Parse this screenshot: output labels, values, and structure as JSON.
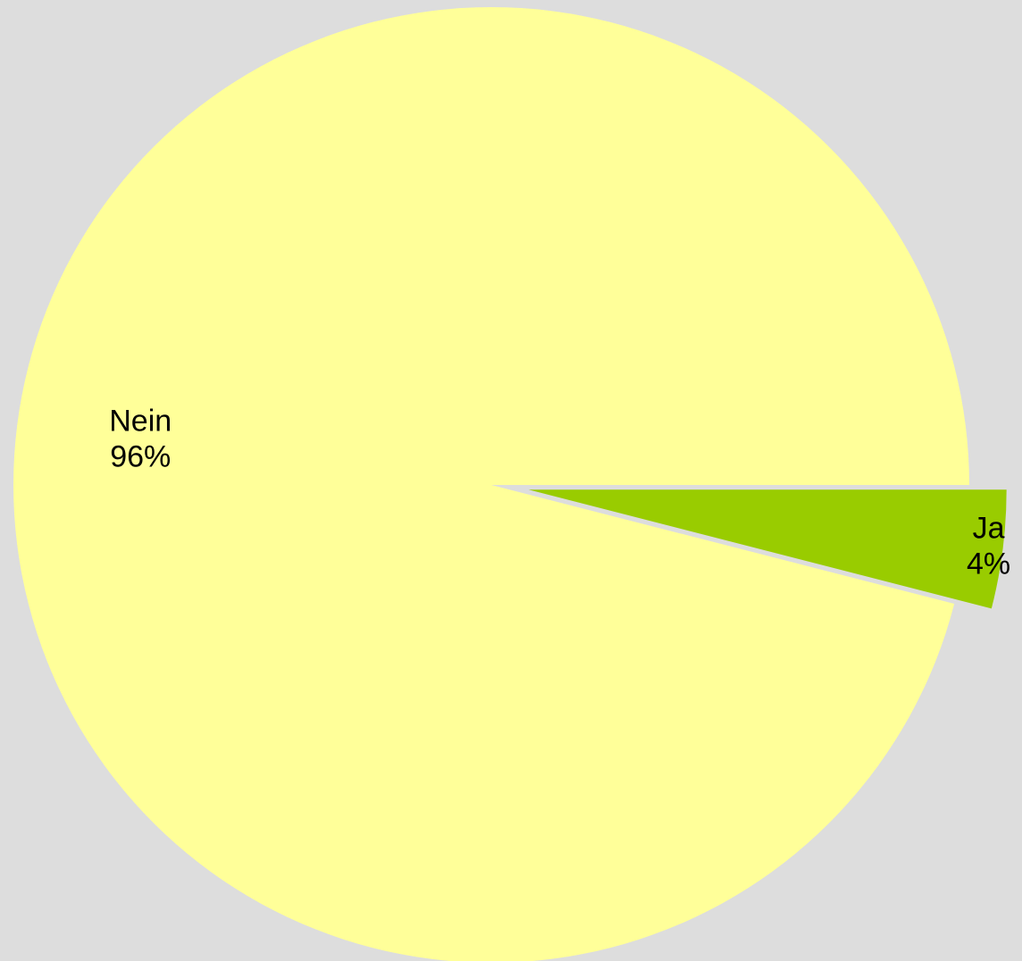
{
  "chart_data": {
    "type": "pie",
    "categories": [
      "Nein",
      "Ja"
    ],
    "values": [
      96,
      4
    ],
    "value_labels": [
      "96%",
      "4%"
    ],
    "colors": [
      "#ffff99",
      "#99cc00"
    ],
    "exploded": [
      false,
      true
    ]
  }
}
